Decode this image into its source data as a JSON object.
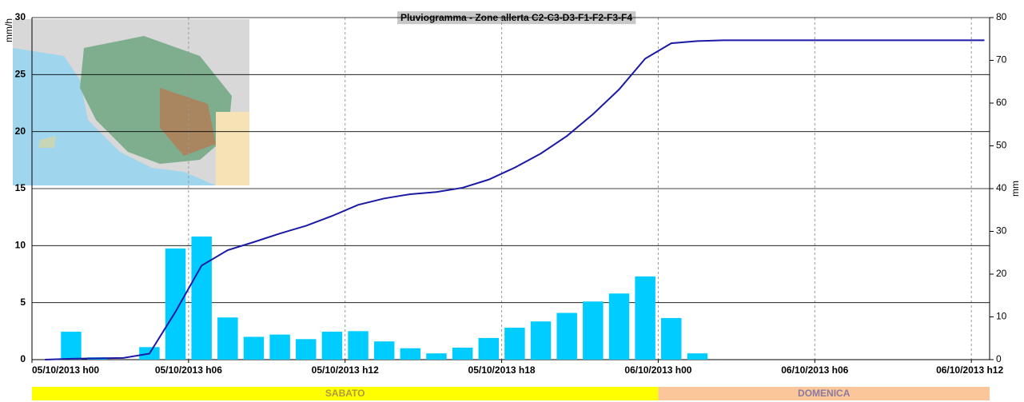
{
  "chart_data": {
    "type": "bar_line",
    "title": "Pluviogramma - Zone allerta C2-C3-D3-F1-F2-F3-F4",
    "ylabel": "mm/h",
    "y2label": "mm",
    "xlim": [
      0,
      36.7
    ],
    "xticks": [
      {
        "value": 0,
        "label": "05/10/2013 h00"
      },
      {
        "value": 6,
        "label": "05/10/2013 h06"
      },
      {
        "value": 12,
        "label": "05/10/2013 h12"
      },
      {
        "value": 18,
        "label": "05/10/2013 h18"
      },
      {
        "value": 24,
        "label": "06/10/2013 h00"
      },
      {
        "value": 30,
        "label": "06/10/2013 h06"
      },
      {
        "value": 36,
        "label": "06/10/2013 h12"
      }
    ],
    "ylim": [
      0,
      30
    ],
    "yticks": [
      0,
      5,
      10,
      15,
      20,
      25,
      30
    ],
    "y2lim": [
      0,
      80
    ],
    "y2ticks": [
      0,
      10,
      20,
      30,
      40,
      50,
      60,
      70,
      80
    ],
    "grid": true,
    "bars": {
      "color": "#00ccff",
      "x": [
        1.5,
        2.5,
        3.5,
        4.5,
        5.5,
        6.5,
        7.5,
        8.5,
        9.5,
        10.5,
        11.5,
        12.5,
        13.5,
        14.5,
        15.5,
        16.5,
        17.5,
        18.5,
        19.5,
        20.5,
        21.5,
        22.5,
        23.5,
        24.5,
        25.5
      ],
      "values": [
        2.45,
        0.2,
        0,
        1.1,
        9.75,
        10.8,
        3.7,
        2.0,
        2.2,
        1.8,
        2.45,
        2.5,
        1.6,
        1.0,
        0.55,
        1.05,
        1.9,
        2.8,
        3.35,
        4.1,
        5.1,
        5.8,
        7.3,
        3.65,
        0.55
      ]
    },
    "line": {
      "color": "#1a1aa6",
      "axis": "y2",
      "x": [
        0.5,
        1.5,
        2.5,
        3.5,
        4.5,
        5.5,
        6.5,
        7.5,
        8.5,
        9.5,
        10.5,
        11.5,
        12.5,
        13.5,
        14.5,
        15.5,
        16.5,
        17.5,
        18.5,
        19.5,
        20.5,
        21.5,
        22.5,
        23.5,
        24.5,
        25.5,
        26.5,
        36.5
      ],
      "values": [
        0,
        0.2,
        0.3,
        0.4,
        1.4,
        11.2,
        22,
        25.6,
        27.5,
        29.5,
        31.3,
        33.6,
        36.2,
        37.7,
        38.7,
        39.2,
        40.2,
        42.1,
        44.9,
        48.2,
        52.3,
        57.4,
        63.2,
        70.4,
        74,
        74.5,
        74.7,
        74.7
      ]
    },
    "days": [
      {
        "label": "SABATO",
        "start": 0,
        "end": 24,
        "color": "#ffff00"
      },
      {
        "label": "DOMENICA",
        "start": 24,
        "end": 36.7,
        "color": "#fbc79a"
      }
    ]
  }
}
